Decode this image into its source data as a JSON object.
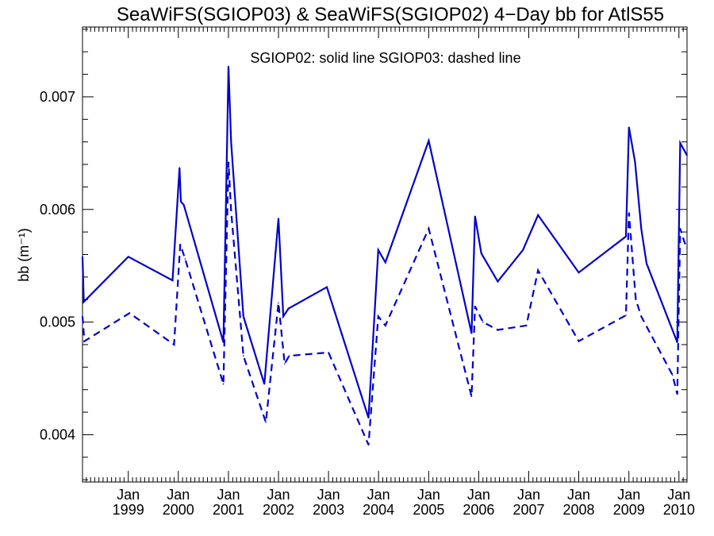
{
  "chart_data": {
    "type": "line",
    "title": "SeaWiFS(SGIOP03) & SeaWiFS(SGIOP02) 4−Day bb for AtlS55",
    "annotation": "SGIOP02: solid line   SGIOP03: dashed line",
    "xlabel": "",
    "ylabel": "bb (m⁻¹)",
    "xlim": [
      "1998-02-01",
      "2010-03-01"
    ],
    "ylim": [
      0.00358,
      0.00762
    ],
    "x_ticks": [
      {
        "date": "1999-01-01",
        "line1": "Jan",
        "line2": "1999"
      },
      {
        "date": "2000-01-01",
        "line1": "Jan",
        "line2": "2000"
      },
      {
        "date": "2001-01-01",
        "line1": "Jan",
        "line2": "2001"
      },
      {
        "date": "2002-01-01",
        "line1": "Jan",
        "line2": "2002"
      },
      {
        "date": "2003-01-01",
        "line1": "Jan",
        "line2": "2003"
      },
      {
        "date": "2004-01-01",
        "line1": "Jan",
        "line2": "2004"
      },
      {
        "date": "2005-01-01",
        "line1": "Jan",
        "line2": "2005"
      },
      {
        "date": "2006-01-01",
        "line1": "Jan",
        "line2": "2006"
      },
      {
        "date": "2007-01-01",
        "line1": "Jan",
        "line2": "2007"
      },
      {
        "date": "2008-01-01",
        "line1": "Jan",
        "line2": "2008"
      },
      {
        "date": "2009-01-01",
        "line1": "Jan",
        "line2": "2009"
      },
      {
        "date": "2010-01-01",
        "line1": "Jan",
        "line2": "2010"
      }
    ],
    "y_ticks": [
      {
        "value": 0.004,
        "label": "0.004"
      },
      {
        "value": 0.005,
        "label": "0.005"
      },
      {
        "value": 0.006,
        "label": "0.006"
      },
      {
        "value": 0.007,
        "label": "0.007"
      }
    ],
    "grid": false,
    "line_color": "#0000cc",
    "series": [
      {
        "line_style": "solid",
        "points": [
          [
            "1998-02-01",
            0.00558
          ],
          [
            "1998-02-10",
            0.00518
          ],
          [
            "1999-01-01",
            0.00558
          ],
          [
            "1999-11-20",
            0.00537
          ],
          [
            "2000-01-10",
            0.00637
          ],
          [
            "2000-01-20",
            0.00607
          ],
          [
            "2000-02-10",
            0.00604
          ],
          [
            "2000-11-25",
            0.00482
          ],
          [
            "2001-01-01",
            0.00727
          ],
          [
            "2001-01-20",
            0.0066
          ],
          [
            "2001-04-20",
            0.00505
          ],
          [
            "2001-09-20",
            0.00445
          ],
          [
            "2002-01-01",
            0.00592
          ],
          [
            "2002-02-05",
            0.00505
          ],
          [
            "2002-03-15",
            0.00512
          ],
          [
            "2002-12-20",
            0.00531
          ],
          [
            "2003-10-20",
            0.00415
          ],
          [
            "2003-12-30",
            0.00564
          ],
          [
            "2004-02-20",
            0.00553
          ],
          [
            "2005-01-01",
            0.00661
          ],
          [
            "2005-11-10",
            0.0049
          ],
          [
            "2005-12-05",
            0.00594
          ],
          [
            "2006-01-20",
            0.00561
          ],
          [
            "2006-05-20",
            0.00536
          ],
          [
            "2006-11-20",
            0.00564
          ],
          [
            "2007-03-10",
            0.00595
          ],
          [
            "2008-01-01",
            0.00544
          ],
          [
            "2008-12-10",
            0.00576
          ],
          [
            "2009-01-01",
            0.00673
          ],
          [
            "2009-02-15",
            0.00642
          ],
          [
            "2009-04-01",
            0.00583
          ],
          [
            "2009-05-10",
            0.00552
          ],
          [
            "2009-12-20",
            0.00482
          ],
          [
            "2010-01-10",
            0.00659
          ],
          [
            "2010-03-01",
            0.00648
          ]
        ]
      },
      {
        "line_style": "dashed",
        "points": [
          [
            "1998-02-01",
            0.00505
          ],
          [
            "1998-02-15",
            0.00483
          ],
          [
            "1999-01-10",
            0.00508
          ],
          [
            "1999-12-01",
            0.0048
          ],
          [
            "2000-01-15",
            0.00569
          ],
          [
            "2000-02-20",
            0.00556
          ],
          [
            "2000-11-25",
            0.00445
          ],
          [
            "2001-01-01",
            0.00642
          ],
          [
            "2001-01-20",
            0.00599
          ],
          [
            "2001-04-20",
            0.0047
          ],
          [
            "2001-10-01",
            0.00411
          ],
          [
            "2002-01-01",
            0.00517
          ],
          [
            "2002-02-15",
            0.00463
          ],
          [
            "2002-03-20",
            0.0047
          ],
          [
            "2003-01-01",
            0.00473
          ],
          [
            "2003-10-20",
            0.00391
          ],
          [
            "2003-12-30",
            0.00505
          ],
          [
            "2004-02-20",
            0.00497
          ],
          [
            "2005-01-01",
            0.00583
          ],
          [
            "2005-11-10",
            0.00434
          ],
          [
            "2005-12-05",
            0.00514
          ],
          [
            "2006-02-01",
            0.005
          ],
          [
            "2006-05-20",
            0.00493
          ],
          [
            "2006-12-15",
            0.00497
          ],
          [
            "2007-03-10",
            0.00546
          ],
          [
            "2008-01-01",
            0.00483
          ],
          [
            "2008-12-10",
            0.00506
          ],
          [
            "2009-01-01",
            0.00597
          ],
          [
            "2009-02-20",
            0.0052
          ],
          [
            "2009-04-01",
            0.00505
          ],
          [
            "2009-11-15",
            0.00453
          ],
          [
            "2009-12-20",
            0.00436
          ],
          [
            "2010-01-10",
            0.00583
          ],
          [
            "2010-02-10",
            0.00571
          ],
          [
            "2010-03-01",
            0.00566
          ]
        ]
      }
    ]
  }
}
